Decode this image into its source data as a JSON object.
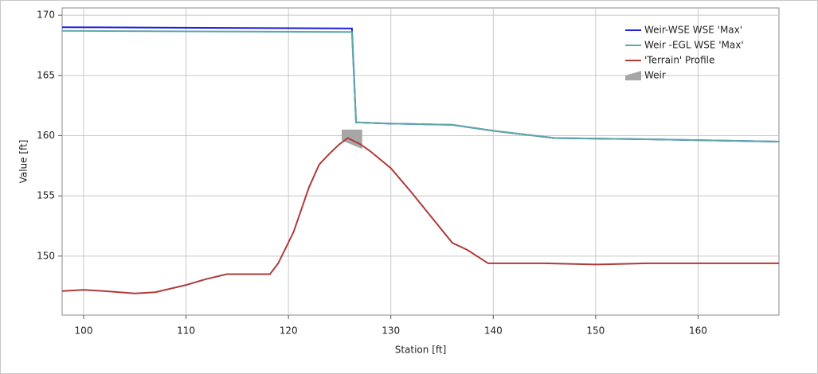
{
  "chart_data": {
    "type": "line",
    "xlabel": "Station [ft]",
    "ylabel": "Value [ft]",
    "xlim": [
      97.9,
      167.9
    ],
    "ylim": [
      145.1,
      170.6
    ],
    "xticks": [
      100,
      110,
      120,
      130,
      140,
      150,
      160
    ],
    "yticks": [
      150,
      155,
      160,
      165,
      170
    ],
    "grid": true,
    "legend": "upper right",
    "series": [
      {
        "name": "Weir-WSE WSE 'Max'",
        "color": "#1f1fe0",
        "x": [
          97.9,
          126.2,
          126.6,
          130,
          136,
          140,
          146,
          155,
          167.9
        ],
        "values": [
          169.0,
          168.9,
          161.1,
          161.0,
          160.9,
          160.4,
          159.8,
          159.7,
          159.5
        ]
      },
      {
        "name": "Weir -EGL WSE 'Max'",
        "color": "#5fa8a8",
        "x": [
          97.9,
          126.2,
          126.6,
          130,
          136,
          140,
          146,
          155,
          167.9
        ],
        "values": [
          168.7,
          168.6,
          161.1,
          161.0,
          160.9,
          160.4,
          159.8,
          159.7,
          159.5
        ]
      },
      {
        "name": "'Terrain' Profile",
        "color": "#b03a3a",
        "x": [
          97.9,
          100,
          102,
          105,
          107,
          110,
          112,
          114,
          116,
          118.2,
          119,
          120.5,
          122,
          123,
          124,
          125,
          125.8,
          127,
          128,
          130,
          132,
          134,
          136,
          137.5,
          139.5,
          141,
          145,
          150,
          155,
          160,
          167.9
        ],
        "values": [
          147.1,
          147.2,
          147.1,
          146.9,
          147.0,
          147.6,
          148.1,
          148.5,
          148.5,
          148.5,
          149.4,
          152.0,
          155.7,
          157.6,
          158.5,
          159.3,
          159.8,
          159.3,
          158.7,
          157.3,
          155.3,
          153.2,
          151.1,
          150.5,
          149.4,
          149.4,
          149.4,
          149.3,
          149.4,
          149.4,
          149.4
        ]
      }
    ],
    "weir": {
      "name": "Weir",
      "color": "#a6a6a6",
      "x": [
        125.2,
        127.2,
        127.2,
        125.2
      ],
      "values": [
        160.5,
        160.5,
        158.9,
        159.6
      ]
    }
  }
}
